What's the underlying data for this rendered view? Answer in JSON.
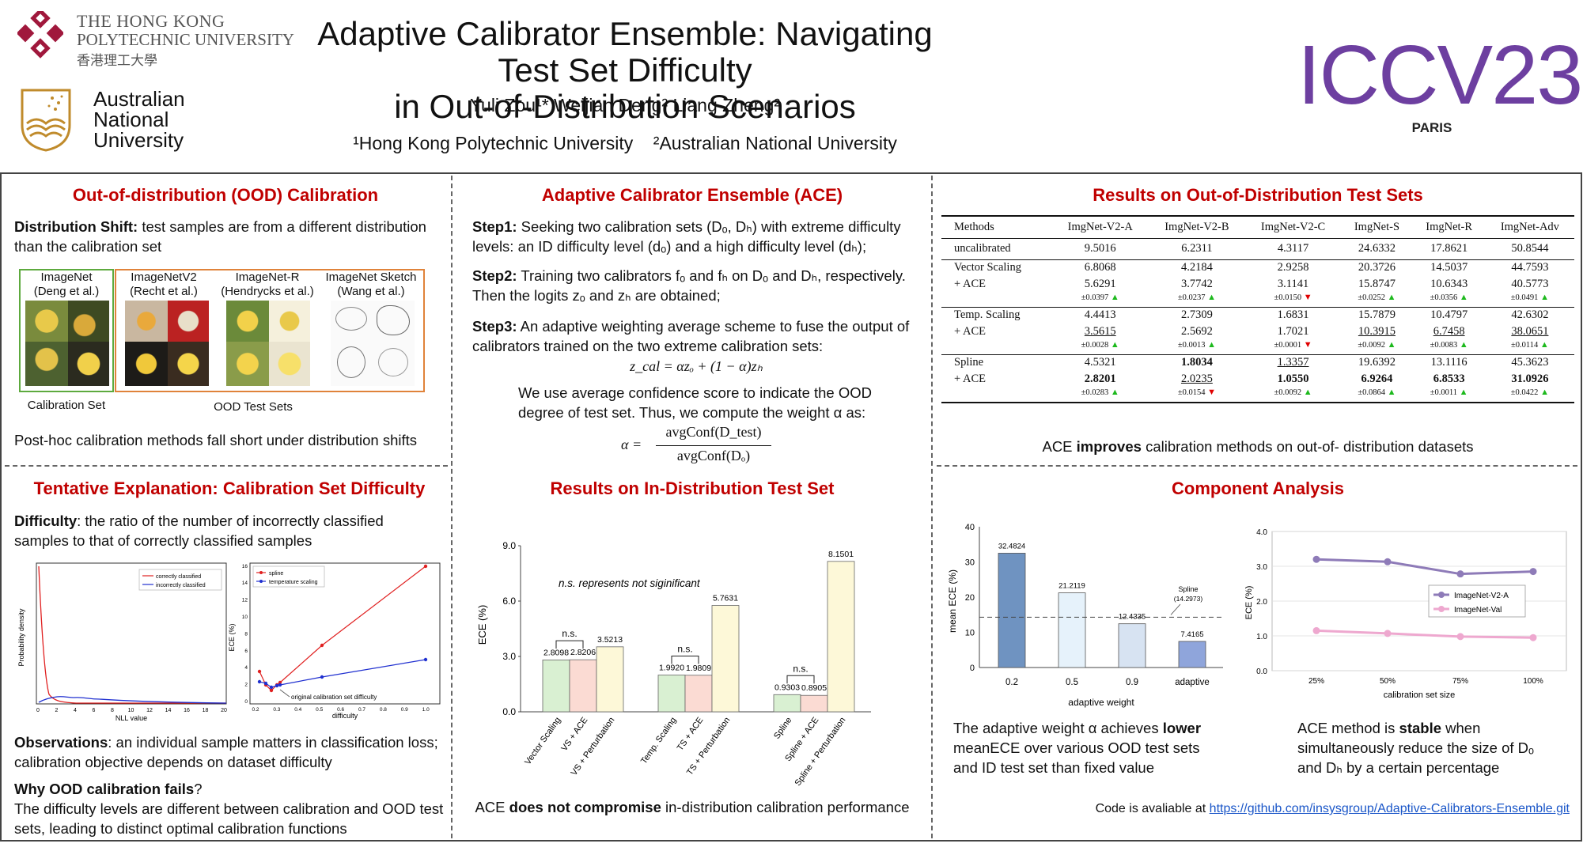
{
  "header": {
    "title_line1": "Adaptive Calibrator Ensemble: Navigating Test Set Difficulty",
    "title_line2": "in Out-of-Distribution Scenarios",
    "authors": "Yuli Zou¹* Weijian Deng² Liang Zheng²",
    "affiliations": "¹Hong Kong Polytechnic University    ²Australian National University",
    "polyu_name_line1": "THE HONG KONG",
    "polyu_name_line2": "POLYTECHNIC UNIVERSITY",
    "polyu_name_cn": "香港理工大學",
    "anu_line1": "Australian",
    "anu_line2": "National",
    "anu_line3": "University",
    "conf_logo": "ICCV23",
    "conf_city": "PARIS"
  },
  "col1": {
    "title1": "Out-of-distribution (OOD) Calibration",
    "shift_label": "Distribution Shift:",
    "shift_text": " test samples are from a different distribution than the calibration set",
    "img_labels": [
      "ImageNet\n(Deng et al.)",
      "ImageNetV2\n(Recht et al.)",
      "ImageNet-R\n(Hendrycks et al.)",
      "ImageNet Sketch\n(Wang et al.)"
    ],
    "calib_set": "Calibration Set",
    "ood_sets": "OOD Test Sets",
    "posthoc": "Post-hoc calibration methods fall short under distribution shifts",
    "title2": "Tentative Explanation: Calibration Set Difficulty",
    "diff_label": "Difficulty",
    "diff_text": ": the ratio of the number of incorrectly classified samples to that of correctly classified samples",
    "obs_label": "Observations",
    "obs_text": ": an individual sample matters in classification loss; calibration objective depends on dataset difficulty",
    "why_label": "Why OOD calibration fails",
    "why_q": "?",
    "why_text": "The difficulty levels are different between calibration and OOD test sets, leading to distinct optimal calibration functions",
    "nll_chart": {
      "ylabel": "Probability density",
      "xlabel": "NLL value",
      "legend": [
        "correctly classified",
        "incorrectly classified"
      ],
      "xticks": [
        "0",
        "2",
        "4",
        "6",
        "8",
        "10",
        "12",
        "14",
        "16",
        "18",
        "20"
      ]
    },
    "ece_chart": {
      "ylabel": "ECE (%)",
      "xlabel": "difficulty",
      "legend": [
        "spline",
        "temperature scaling"
      ],
      "annotation": "original calibration set difficulty",
      "xticks": [
        "0.2",
        "0.3",
        "0.4",
        "0.5",
        "0.6",
        "0.7",
        "0.8",
        "0.9",
        "1.0"
      ],
      "yticks": [
        "0",
        "2",
        "4",
        "6",
        "8",
        "10",
        "12",
        "14",
        "16"
      ]
    }
  },
  "col2": {
    "title1": "Adaptive Calibrator Ensemble (ACE)",
    "step1_label": "Step1:",
    "step1_text": " Seeking two calibration sets (Dₒ, Dₕ) with extreme difficulty levels: an ID difficulty level (dₒ) and a high difficulty level (dₕ);",
    "step2_label": "Step2:",
    "step2_text": " Training two calibrators fₒ and fₕ on Dₒ and Dₕ, respectively. Then the logits zₒ and zₕ are obtained;",
    "step3_label": "Step3:",
    "step3_text": " An adaptive weighting average scheme to fuse the output of calibrators trained on the two extreme calibration sets:",
    "eq1": "z_cal = αzₒ + (1 − α)zₕ",
    "conf_text": "We use average confidence score to indicate  the OOD degree of test set. Thus, we compute the weight α as:",
    "eq2_lhs": "α =",
    "eq2_num": "avgConf(D_test)",
    "eq2_den": "avgConf(Dₒ)",
    "title2": "Results on In-Distribution Test Set",
    "bottom_pre": "ACE ",
    "bottom_bold": "does not compromise",
    "bottom_post": " in-distribution calibration performance"
  },
  "col3": {
    "title1": "Results on Out-of-Distribution Test Sets",
    "table": {
      "headers": [
        "Methods",
        "ImgNet-V2-A",
        "ImgNet-V2-B",
        "ImgNet-V2-C",
        "ImgNet-S",
        "ImgNet-R",
        "ImgNet-Adv"
      ],
      "uncal": [
        "uncalibrated",
        "9.5016",
        "6.2311",
        "4.3117",
        "24.6332",
        "17.8621",
        "50.8544"
      ],
      "groups": [
        {
          "name": "Vector Scaling",
          "base": [
            "6.8068",
            "4.2184",
            "2.9258",
            "20.3726",
            "14.5037",
            "44.7593"
          ],
          "ace": [
            "5.6291",
            "3.7742",
            "3.1141",
            "15.8747",
            "10.6343",
            "40.5773"
          ],
          "delta": [
            "±0.0397",
            "±0.0237",
            "±0.0150",
            "±0.0252",
            "±0.0356",
            "±0.0491"
          ],
          "dir": [
            "up",
            "up",
            "down",
            "up",
            "up",
            "up"
          ]
        },
        {
          "name": "Temp. Scaling",
          "base": [
            "4.4413",
            "2.7309",
            "1.6831",
            "15.7879",
            "10.4797",
            "42.6302"
          ],
          "ace": [
            "3.5615",
            "2.5692",
            "1.7021",
            "10.3915",
            "6.7458",
            "38.0651"
          ],
          "delta": [
            "±0.0028",
            "±0.0013",
            "±0.0001",
            "±0.0092",
            "±0.0083",
            "±0.0114"
          ],
          "dir": [
            "up",
            "up",
            "down",
            "up",
            "up",
            "up"
          ]
        },
        {
          "name": "Spline",
          "base": [
            "4.5321",
            "1.8034",
            "1.3357",
            "19.6392",
            "13.1116",
            "45.3623"
          ],
          "ace": [
            "2.8201",
            "2.0235",
            "1.0550",
            "6.9264",
            "6.8533",
            "31.0926"
          ],
          "delta": [
            "±0.0283",
            "±0.0154",
            "±0.0092",
            "±0.0864",
            "±0.0011",
            "±0.0422"
          ],
          "dir": [
            "up",
            "down",
            "up",
            "up",
            "up",
            "up"
          ]
        }
      ],
      "ace_label": "+ ACE"
    },
    "summary_pre": "ACE ",
    "summary_bold": "improves",
    "summary_post": " calibration methods on out-of- distribution datasets",
    "title2": "Component Analysis",
    "ca_left_pre": "The adaptive weight α achieves ",
    "ca_left_bold": "lower",
    "ca_left_post": " meanECE over various OOD test sets and ID test set than fixed value",
    "ca_right_pre": "ACE method is ",
    "ca_right_bold": "stable",
    "ca_right_post": " when simultaneously reduce the size of Dₒ and Dₕ by a certain percentage",
    "code_pre": "Code is avaliable at ",
    "code_link": "https://github.com/insysgroup/Adaptive-Calibrators-Ensemble.git"
  },
  "chart_data": [
    {
      "type": "bar",
      "ylabel": "ECE (%)",
      "ylim": [
        0,
        9.0
      ],
      "yticks": [
        "0.0",
        "3.0",
        "6.0",
        "9.0"
      ],
      "annotation": "n.s. represents not siginificant",
      "ns_label": "n.s.",
      "categories": [
        "Vector Scaling",
        "VS + ACE",
        "VS + Perturbation",
        "Temp. Scaling",
        "TS + ACE",
        "TS + Perturbation",
        "Spline",
        "Spline + ACE",
        "Spline + Perturbation"
      ],
      "values": [
        2.8098,
        2.8206,
        3.5213,
        1.992,
        1.9809,
        5.7631,
        0.9303,
        0.8905,
        8.1501
      ],
      "labels": [
        "2.8098",
        "2.8206",
        "3.5213",
        "1.9920",
        "1.9809",
        "5.7631",
        "0.9303",
        "0.8905",
        "8.1501"
      ],
      "colors": [
        "#d9f0d2",
        "#fbdbd3",
        "#fdf8d8",
        "#d9f0d2",
        "#fbdbd3",
        "#fdf8d8",
        "#d9f0d2",
        "#fbdbd3",
        "#fdf8d8"
      ]
    },
    {
      "type": "bar",
      "ylabel": "mean ECE (%)",
      "xlabel": "adaptive weight",
      "ylim": [
        0,
        40
      ],
      "yticks": [
        "0",
        "10",
        "20",
        "30",
        "40"
      ],
      "categories": [
        "0.2",
        "0.5",
        "0.9",
        "adaptive"
      ],
      "values": [
        32.4824,
        21.2119,
        12.4335,
        7.4165
      ],
      "labels": [
        "32.4824",
        "21.2119",
        "12.4335",
        "7.4165"
      ],
      "colors": [
        "#6f93c1",
        "#e6f2fb",
        "#d7e3f2",
        "#8fa5db"
      ],
      "reference": {
        "label": "Spline",
        "value_label": "(14.2973)",
        "value": 14.2973
      }
    },
    {
      "type": "line",
      "ylabel": "ECE (%)",
      "xlabel": "calibration set size",
      "ylim": [
        0,
        4.0
      ],
      "yticks": [
        "0.0",
        "1.0",
        "2.0",
        "3.0",
        "4.0"
      ],
      "x": [
        "25%",
        "50%",
        "75%",
        "100%"
      ],
      "series": [
        {
          "name": "ImageNet-V2-A",
          "values": [
            3.2,
            3.13,
            2.78,
            2.85
          ],
          "color": "#8e7bb8"
        },
        {
          "name": "ImageNet-Val",
          "values": [
            1.15,
            1.07,
            0.98,
            0.95
          ],
          "color": "#eea8cf"
        }
      ]
    }
  ]
}
